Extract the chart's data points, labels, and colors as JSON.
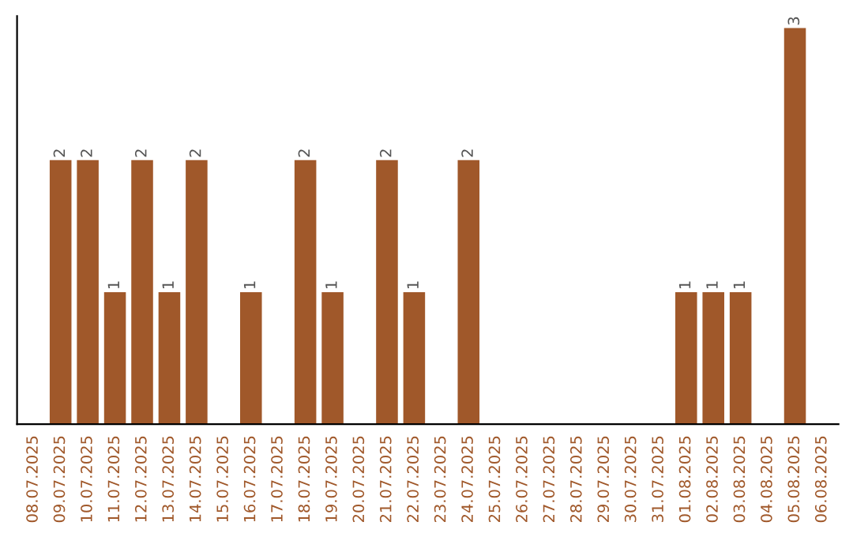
{
  "chart_data": {
    "type": "bar",
    "categories": [
      "08.07.2025",
      "09.07.2025",
      "10.07.2025",
      "11.07.2025",
      "12.07.2025",
      "13.07.2025",
      "14.07.2025",
      "15.07.2025",
      "16.07.2025",
      "17.07.2025",
      "18.07.2025",
      "19.07.2025",
      "20.07.2025",
      "21.07.2025",
      "22.07.2025",
      "23.07.2025",
      "24.07.2025",
      "25.07.2025",
      "26.07.2025",
      "27.07.2025",
      "28.07.2025",
      "29.07.2025",
      "30.07.2025",
      "31.07.2025",
      "01.08.2025",
      "02.08.2025",
      "03.08.2025",
      "04.08.2025",
      "05.08.2025",
      "06.08.2025"
    ],
    "values": [
      0,
      2,
      2,
      1,
      2,
      1,
      2,
      0,
      1,
      0,
      2,
      1,
      0,
      2,
      1,
      0,
      2,
      0,
      0,
      0,
      0,
      0,
      0,
      0,
      1,
      1,
      1,
      0,
      3,
      0
    ],
    "value_labels": [
      null,
      "2",
      "2",
      "1",
      "2",
      "1",
      "2",
      null,
      "1",
      null,
      "2",
      "1",
      null,
      "2",
      "1",
      null,
      "2",
      null,
      null,
      null,
      null,
      null,
      null,
      null,
      "1",
      "1",
      "1",
      null,
      "3",
      null
    ],
    "color": "#a0582a",
    "grid": false,
    "legend": false
  }
}
